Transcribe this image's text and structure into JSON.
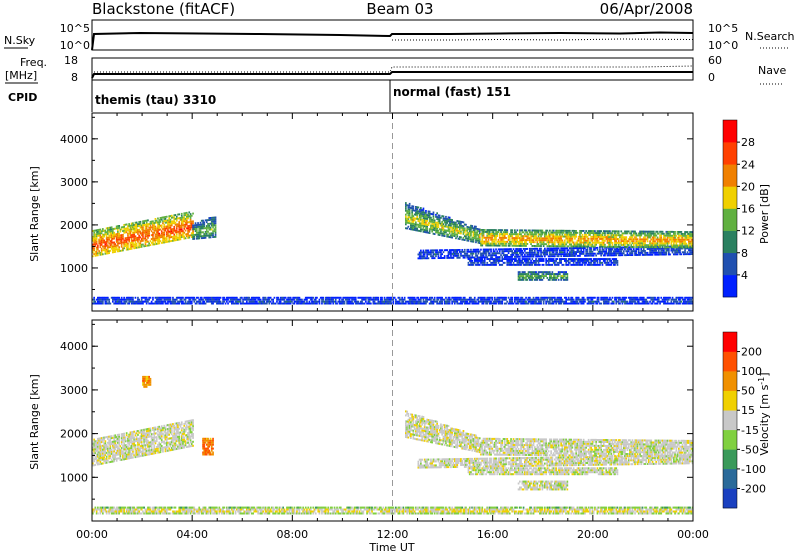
{
  "header": {
    "station": "Blackstone (fitACF)",
    "beam": "Beam 03",
    "date": "06/Apr/2008"
  },
  "top_panels": {
    "nsky_label": "N.Sky",
    "nsearch_label": "N.Search",
    "noise_ticks_left": [
      "10^5",
      "10^0"
    ],
    "noise_ticks_right": [
      "10^5",
      "10^0"
    ],
    "freq_label_top": "Freq.",
    "freq_label_bottom": "[MHz]",
    "freq_ticks": [
      "18",
      "8"
    ],
    "nave_label": "Nave",
    "nave_ticks": [
      "60",
      "0"
    ],
    "cpid_label": "CPID",
    "cpid_segments": [
      {
        "label": "themis (tau) 3310",
        "start_hour": 0
      },
      {
        "label": "normal (fast) 151",
        "start_hour": 12
      }
    ]
  },
  "axes": {
    "ylabel": "Slant Range [km]",
    "yticks": [
      "4000",
      "3000",
      "2000",
      "1000"
    ],
    "xlabel": "Time UT",
    "xticks": [
      "00:00",
      "04:00",
      "08:00",
      "12:00",
      "16:00",
      "20:00",
      "00:00"
    ]
  },
  "colorbars": {
    "power": {
      "label": "Power [dB]",
      "ticks": [
        "28",
        "24",
        "20",
        "16",
        "12",
        "8",
        "4"
      ],
      "colors": [
        "#0020ff",
        "#2050b0",
        "#2a8060",
        "#60b040",
        "#f0d000",
        "#f08000",
        "#ff4000",
        "#ff0000"
      ]
    },
    "velocity": {
      "label_main": "Velocity [m s",
      "label_sup": "-1",
      "label_close": "]",
      "ticks": [
        "200",
        "100",
        "50",
        "15",
        "-15",
        "-50",
        "-100",
        "-200"
      ],
      "colors": [
        "#1a40c0",
        "#2a6a9a",
        "#3a9a5a",
        "#80d040",
        "#c8c8c8",
        "#f0d000",
        "#f09000",
        "#ff5000",
        "#ff0000"
      ]
    }
  },
  "chart_data": [
    {
      "type": "heatmap",
      "title": "Power",
      "x_range_hours": [
        0,
        24
      ],
      "ylim": [
        0,
        4600
      ],
      "scatter_bands": [
        {
          "t0": 0.0,
          "t1": 4.0,
          "r0_start": 1250,
          "r0_end": 1700,
          "r1_start": 1850,
          "r1_end": 2300,
          "level_center": 6,
          "level_edge": 3
        },
        {
          "t0": 4.0,
          "t1": 4.9,
          "r0_start": 1650,
          "r0_end": 1700,
          "r1_start": 2000,
          "r1_end": 2200,
          "level_center": 3,
          "level_edge": 1
        },
        {
          "t0": 12.5,
          "t1": 15.5,
          "r0_start": 1900,
          "r0_end": 1550,
          "r1_start": 2500,
          "r1_end": 1900,
          "level_center": 4,
          "level_edge": 1
        },
        {
          "t0": 13.0,
          "t1": 24.0,
          "r0_start": 1200,
          "r0_end": 1300,
          "r1_start": 1400,
          "r1_end": 1500,
          "level_center": 1,
          "level_edge": 0
        },
        {
          "t0": 15.5,
          "t1": 24.0,
          "r0_start": 1500,
          "r0_end": 1450,
          "r1_start": 1900,
          "r1_end": 1850,
          "level_center": 5,
          "level_edge": 2
        },
        {
          "t0": 15.0,
          "t1": 21.0,
          "r0_start": 1050,
          "r0_end": 1050,
          "r1_start": 1200,
          "r1_end": 1200,
          "level_center": 1,
          "level_edge": 0
        },
        {
          "t0": 17.0,
          "t1": 19.0,
          "r0_start": 700,
          "r0_end": 700,
          "r1_start": 900,
          "r1_end": 900,
          "level_center": 3,
          "level_edge": 1
        },
        {
          "t0": 0.0,
          "t1": 24.0,
          "r0_start": 150,
          "r0_end": 150,
          "r1_start": 300,
          "r1_end": 300,
          "level_center": 1,
          "level_edge": 0
        }
      ]
    },
    {
      "type": "heatmap",
      "title": "Velocity",
      "x_range_hours": [
        0,
        24
      ],
      "ylim": [
        0,
        4600
      ],
      "scatter_bands": [
        {
          "t0": 0.0,
          "t1": 4.0,
          "r0_start": 1250,
          "r0_end": 1700,
          "r1_start": 1850,
          "r1_end": 2300,
          "level_center": 4,
          "level_edge": 4
        },
        {
          "t0": 12.5,
          "t1": 15.5,
          "r0_start": 1900,
          "r0_end": 1550,
          "r1_start": 2500,
          "r1_end": 1900,
          "level_center": 4,
          "level_edge": 4
        },
        {
          "t0": 13.0,
          "t1": 24.0,
          "r0_start": 1200,
          "r0_end": 1300,
          "r1_start": 1400,
          "r1_end": 1500,
          "level_center": 4,
          "level_edge": 4
        },
        {
          "t0": 15.5,
          "t1": 24.0,
          "r0_start": 1500,
          "r0_end": 1450,
          "r1_start": 1900,
          "r1_end": 1850,
          "level_center": 4,
          "level_edge": 4
        },
        {
          "t0": 15.0,
          "t1": 21.0,
          "r0_start": 1050,
          "r0_end": 1050,
          "r1_start": 1200,
          "r1_end": 1200,
          "level_center": 4,
          "level_edge": 4
        },
        {
          "t0": 17.0,
          "t1": 19.0,
          "r0_start": 700,
          "r0_end": 700,
          "r1_start": 900,
          "r1_end": 900,
          "level_center": 4,
          "level_edge": 4
        },
        {
          "t0": 4.4,
          "t1": 4.8,
          "r0_start": 1500,
          "r0_end": 1500,
          "r1_start": 1900,
          "r1_end": 1900,
          "level_center": 7,
          "level_edge": 6
        },
        {
          "t0": 2.0,
          "t1": 2.3,
          "r0_start": 3050,
          "r0_end": 3050,
          "r1_start": 3300,
          "r1_end": 3300,
          "level_center": 6,
          "level_edge": 6
        },
        {
          "t0": 0.0,
          "t1": 24.0,
          "r0_start": 150,
          "r0_end": 150,
          "r1_start": 300,
          "r1_end": 300,
          "level_center": 5,
          "level_edge": 3
        }
      ]
    }
  ]
}
